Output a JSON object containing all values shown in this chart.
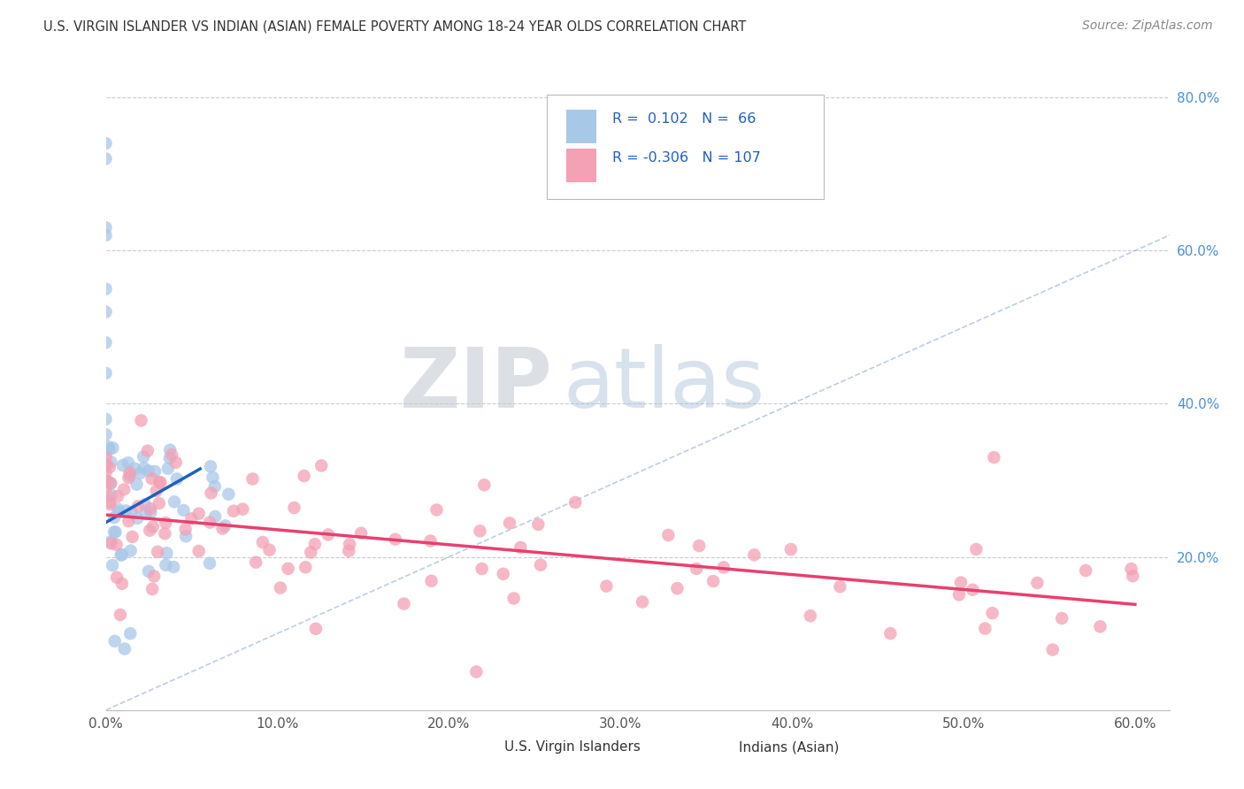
{
  "title": "U.S. VIRGIN ISLANDER VS INDIAN (ASIAN) FEMALE POVERTY AMONG 18-24 YEAR OLDS CORRELATION CHART",
  "source": "Source: ZipAtlas.com",
  "ylabel": "Female Poverty Among 18-24 Year Olds",
  "xlim": [
    0.0,
    0.62
  ],
  "ylim": [
    0.0,
    0.85
  ],
  "xticks": [
    0.0,
    0.1,
    0.2,
    0.3,
    0.4,
    0.5,
    0.6
  ],
  "xticklabels": [
    "0.0%",
    "10.0%",
    "20.0%",
    "30.0%",
    "40.0%",
    "50.0%",
    "60.0%"
  ],
  "yticks_right": [
    0.2,
    0.4,
    0.6,
    0.8
  ],
  "yticklabels_right": [
    "20.0%",
    "40.0%",
    "60.0%",
    "80.0%"
  ],
  "R_blue": 0.102,
  "N_blue": 66,
  "R_pink": -0.306,
  "N_pink": 107,
  "color_blue": "#a8c8e8",
  "color_pink": "#f4a0b5",
  "color_blue_line": "#2060c0",
  "color_pink_line": "#e84070",
  "color_diag": "#a0b8d8",
  "legend_label_blue": "U.S. Virgin Islanders",
  "legend_label_pink": "Indians (Asian)",
  "watermark_zip": "ZIP",
  "watermark_atlas": "atlas",
  "blue_trend_x0": 0.0,
  "blue_trend_y0": 0.245,
  "blue_trend_x1": 0.055,
  "blue_trend_y1": 0.315,
  "pink_trend_x0": 0.0,
  "pink_trend_y0": 0.255,
  "pink_trend_x1": 0.6,
  "pink_trend_y1": 0.138
}
